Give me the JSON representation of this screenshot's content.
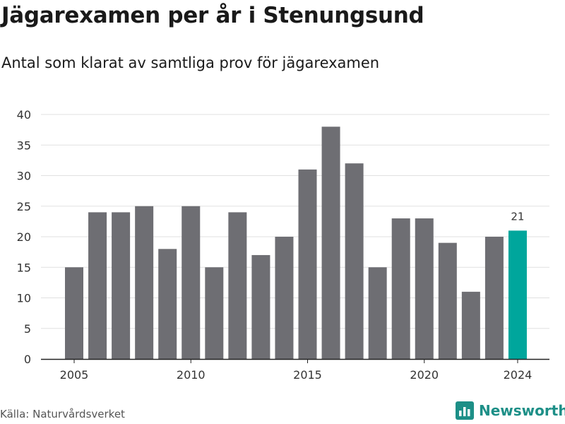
{
  "title": "Jägarexamen per år i Stenungsund",
  "subtitle": "Antal som klarat av samtliga prov för jägarexamen",
  "source": "Källa: Naturvårdsverket",
  "brand": {
    "name": "Newsworthy",
    "icon": "newsworthy-logo-icon",
    "color": "#1d8f87"
  },
  "colors": {
    "bar": "#6e6e73",
    "highlight": "#00a69c",
    "grid": "#e1e1e1",
    "axis": "#222222"
  },
  "chart_data": {
    "type": "bar",
    "title": "Jägarexamen per år i Stenungsund",
    "subtitle": "Antal som klarat av samtliga prov för jägarexamen",
    "x": [
      2005,
      2006,
      2007,
      2008,
      2009,
      2010,
      2011,
      2012,
      2013,
      2014,
      2015,
      2016,
      2017,
      2018,
      2019,
      2020,
      2021,
      2022,
      2023,
      2024
    ],
    "values": [
      15,
      24,
      24,
      25,
      18,
      25,
      15,
      24,
      17,
      20,
      31,
      38,
      32,
      15,
      23,
      23,
      19,
      11,
      20,
      21
    ],
    "xticks": [
      "2005",
      "2010",
      "2015",
      "2020",
      "2024"
    ],
    "yticks": [
      "0",
      "5",
      "10",
      "15",
      "20",
      "25",
      "30",
      "35",
      "40"
    ],
    "ylim": [
      0,
      40
    ],
    "grid": true,
    "highlight": {
      "x": 2024,
      "label": "21"
    },
    "xlabel": "",
    "ylabel": ""
  }
}
